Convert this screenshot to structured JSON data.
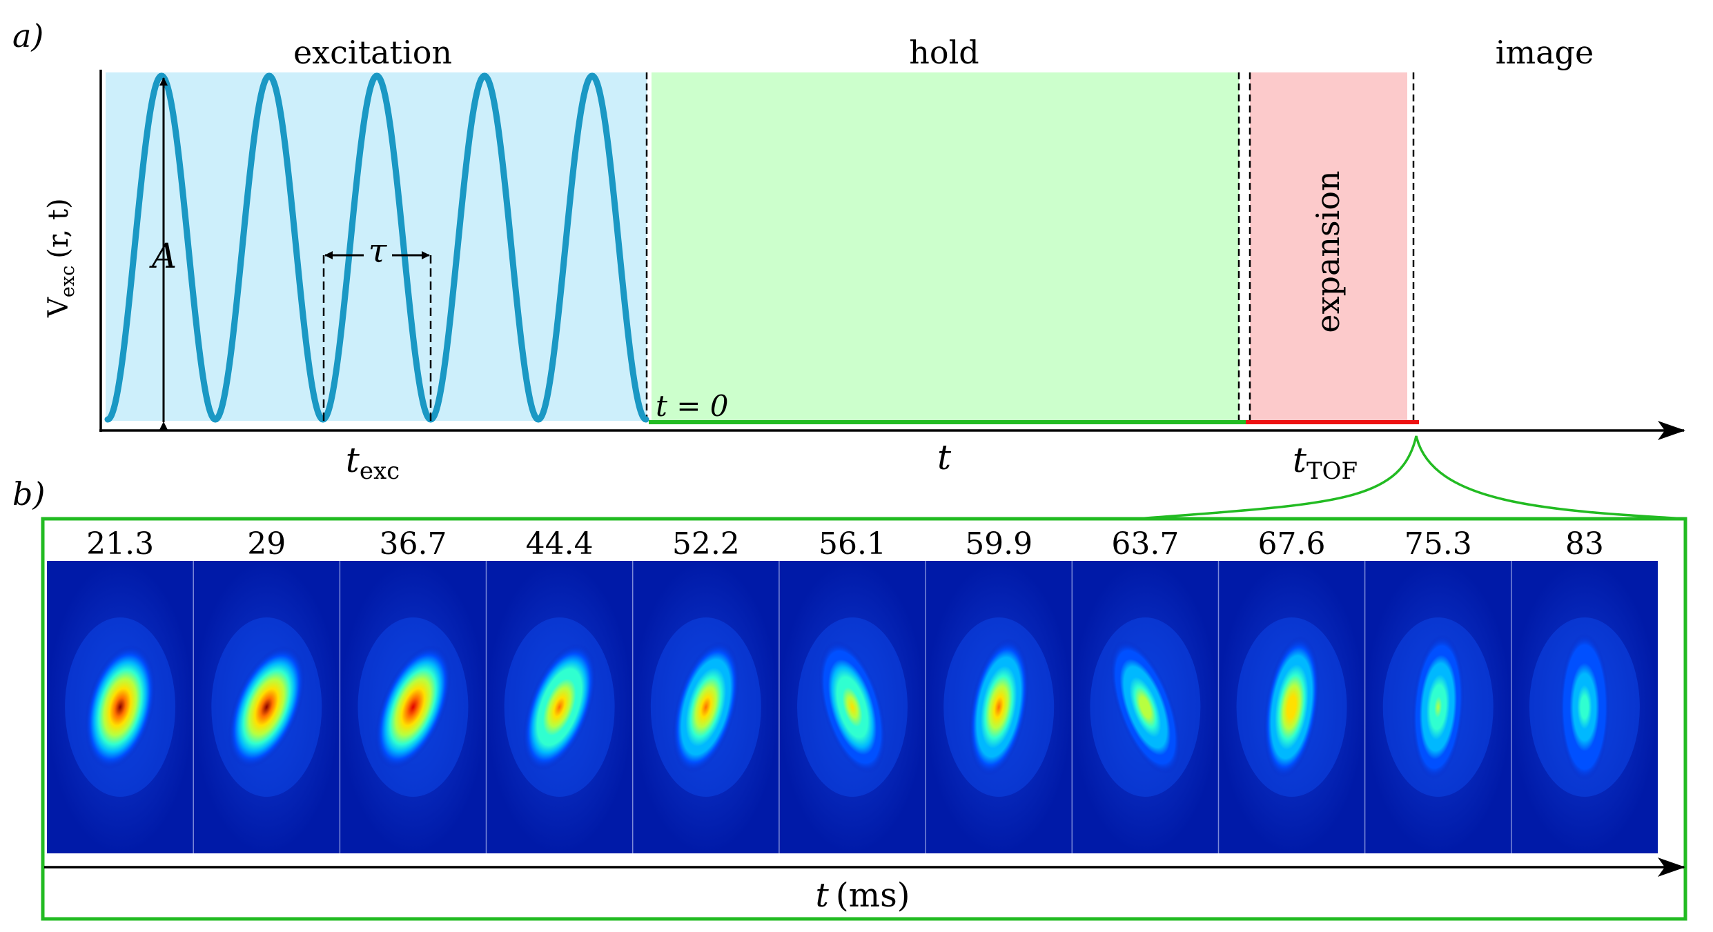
{
  "panel_a": {
    "label": "a)",
    "phases": {
      "excitation": "excitation",
      "hold": "hold",
      "expansion": "expansion",
      "image": "image"
    },
    "y_label": {
      "main": "V",
      "sub": "exc",
      "args": "(r, t)"
    },
    "annotations": {
      "amplitude": "A",
      "period": "τ",
      "t_zero": "t = 0"
    },
    "axis_labels": {
      "t_exc_main": "t",
      "t_exc_sub": "exc",
      "t_hold": "t",
      "t_tof_main": "t",
      "t_tof_sub": "TOF"
    },
    "colors": {
      "excitation": "#cdeffb",
      "hold": "#ccffcc",
      "expansion": "#fccacb",
      "wave": "#1a98c4",
      "hold_line": "#22bb22",
      "tof_line": "#ee1111",
      "frame": "#22bb22"
    }
  },
  "panel_b": {
    "label": "b)",
    "frame_times": [
      "21.3",
      "29",
      "36.7",
      "44.4",
      "52.2",
      "56.1",
      "59.9",
      "63.7",
      "67.6",
      "75.3",
      "83"
    ],
    "cloud_peak": [
      1.0,
      1.0,
      0.96,
      0.9,
      0.86,
      0.72,
      0.82,
      0.66,
      0.8,
      0.62,
      0.55
    ],
    "cloud_tilt_deg": [
      14,
      22,
      22,
      20,
      15,
      -16,
      10,
      -20,
      8,
      4,
      0
    ],
    "x_axis_main": "t",
    "x_axis_unit": "(ms)"
  }
}
